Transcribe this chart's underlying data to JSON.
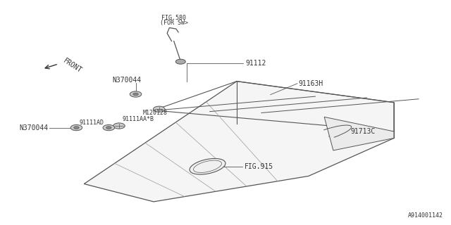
{
  "bg_color": "#ffffff",
  "line_color": "#555555",
  "text_color": "#333333",
  "diagram_id": "A914001142",
  "parts": {
    "fig580_line1": "FIG.580",
    "fig580_line2": "(FOR SW>",
    "p91112_label": "91112",
    "p91163H_label": "91163H",
    "N370044_top_label": "N370044",
    "M120128_label": "M120128",
    "p91111AA_label": "91111AA*B",
    "p91111AD_label": "91111AD",
    "N370044_bot_label": "N370044",
    "p91713C_label": "91713C",
    "fig915_label": "FIG.915",
    "front_label": "FRONT"
  },
  "font_size": 7,
  "small_font": 6
}
